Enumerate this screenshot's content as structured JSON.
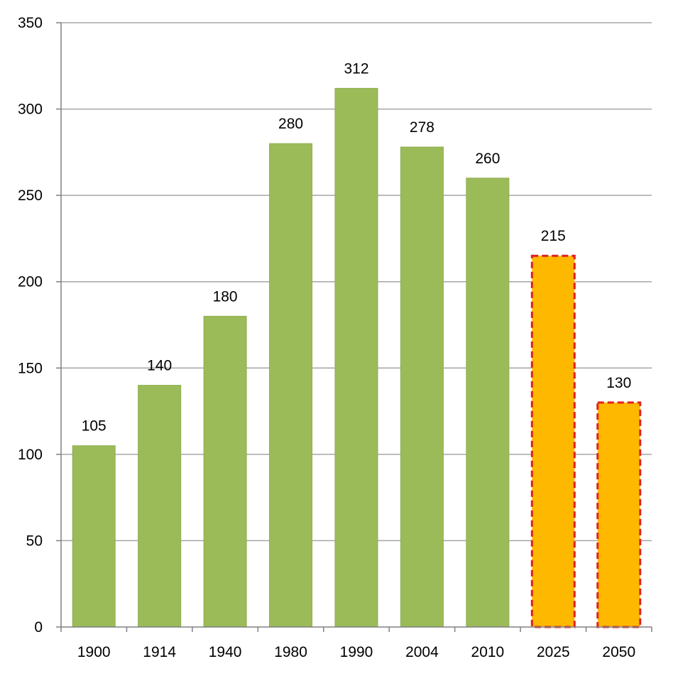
{
  "chart_data": {
    "type": "bar",
    "title": "",
    "xlabel": "",
    "ylabel": "",
    "categories": [
      "1900",
      "1914",
      "1940",
      "1980",
      "1990",
      "2004",
      "2010",
      "2025",
      "2050"
    ],
    "values": [
      105,
      140,
      180,
      280,
      312,
      278,
      260,
      215,
      130
    ],
    "data_labels": [
      "105",
      "140",
      "180",
      "280",
      "312",
      "278",
      "260",
      "215",
      "130"
    ],
    "projected": [
      false,
      false,
      false,
      false,
      false,
      false,
      false,
      true,
      true
    ],
    "ylim": [
      0,
      350
    ],
    "yticks": [
      0,
      50,
      100,
      150,
      200,
      250,
      300,
      350
    ],
    "ytick_labels": [
      "0",
      "50",
      "100",
      "150",
      "200",
      "250",
      "300",
      "350"
    ],
    "grid": true,
    "legend": "none",
    "colors": {
      "actual_fill": "#9BBB59",
      "actual_stroke": "#8EAD4F",
      "projected_fill": "#FFB800",
      "projected_border": "#E02020",
      "gridline": "#A6A6A6",
      "axis": "#808080"
    }
  }
}
